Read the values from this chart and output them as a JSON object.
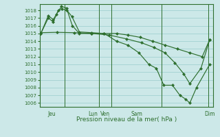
{
  "xlabel": "Pression niveau de la mer( hPa )",
  "bg_color": "#cce8e8",
  "grid_color": "#99cccc",
  "line_color": "#2d6e2d",
  "ylim": [
    1005.5,
    1018.8
  ],
  "yticks": [
    1006,
    1007,
    1008,
    1009,
    1010,
    1011,
    1012,
    1013,
    1014,
    1015,
    1016,
    1017,
    1018
  ],
  "xlim": [
    0,
    7.0
  ],
  "day_sep_x": [
    1.0,
    2.4,
    2.9,
    4.9,
    6.8
  ],
  "day_labels": [
    [
      "Jeu",
      0.5
    ],
    [
      "Lun",
      2.15
    ],
    [
      "Ven",
      2.65
    ],
    [
      "Sam",
      3.9
    ],
    [
      "Dim",
      6.85
    ]
  ],
  "line1_x": [
    0.05,
    0.35,
    0.55,
    0.75,
    0.9,
    1.1,
    1.3,
    1.6,
    2.1,
    2.6,
    3.1,
    3.55,
    4.05,
    4.55,
    5.05,
    5.55,
    6.05,
    6.55,
    6.85
  ],
  "line1_y": [
    1015.0,
    1017.0,
    1016.5,
    1018.0,
    1018.2,
    1018.0,
    1017.2,
    1015.2,
    1015.1,
    1015.0,
    1015.0,
    1014.8,
    1014.5,
    1014.0,
    1013.5,
    1013.0,
    1012.5,
    1012.0,
    1014.2
  ],
  "line2_x": [
    0.05,
    0.35,
    0.55,
    0.68,
    0.88,
    1.08,
    1.32,
    1.6,
    2.1,
    2.6,
    3.1,
    3.55,
    4.0,
    4.4,
    4.7,
    5.0,
    5.35,
    5.65,
    5.88,
    6.05,
    6.32,
    6.85
  ],
  "line2_y": [
    1015.0,
    1017.3,
    1016.8,
    1017.5,
    1018.5,
    1018.3,
    1016.0,
    1015.0,
    1015.0,
    1015.0,
    1014.0,
    1013.5,
    1012.5,
    1011.0,
    1010.5,
    1008.3,
    1008.3,
    1007.0,
    1006.5,
    1006.0,
    1008.0,
    1011.0
  ],
  "line3_x": [
    0.05,
    0.7,
    1.4,
    2.1,
    2.8,
    3.5,
    4.1,
    4.6,
    5.05,
    5.45,
    5.8,
    6.05,
    6.5,
    6.85
  ],
  "line3_y": [
    1015.1,
    1015.15,
    1015.1,
    1015.0,
    1014.8,
    1014.3,
    1013.8,
    1013.2,
    1012.5,
    1011.2,
    1009.8,
    1008.5,
    1010.5,
    1014.2
  ]
}
